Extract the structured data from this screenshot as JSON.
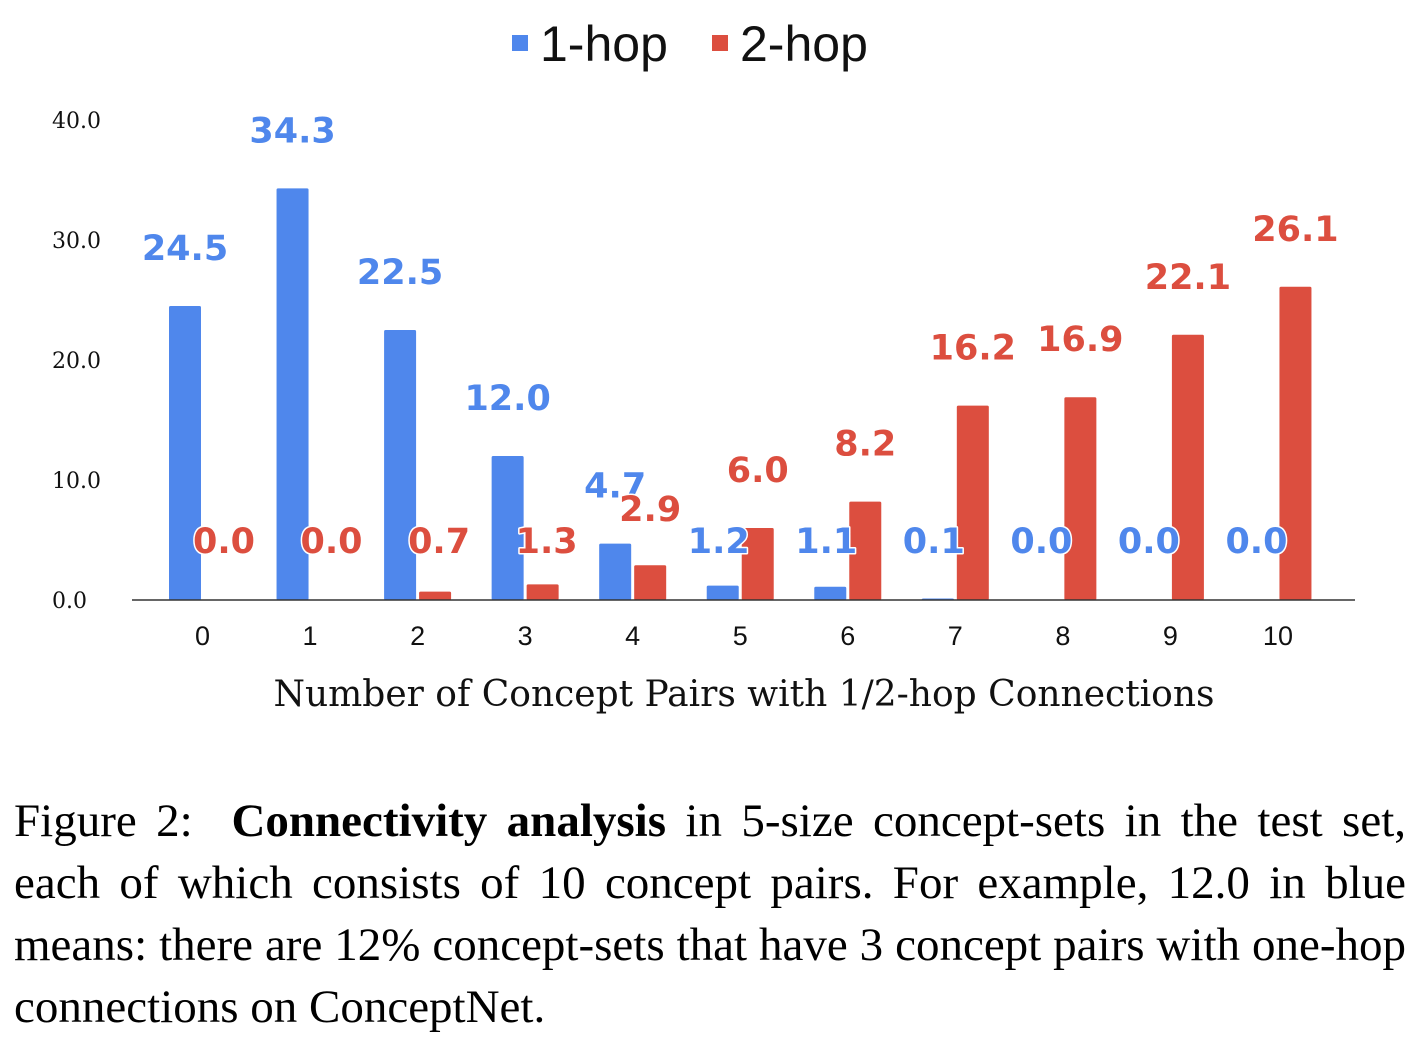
{
  "chart_data": {
    "type": "bar",
    "categories": [
      "0",
      "1",
      "2",
      "3",
      "4",
      "5",
      "6",
      "7",
      "8",
      "9",
      "10"
    ],
    "series": [
      {
        "name": "1-hop",
        "color": "#4f87ec",
        "values": [
          24.5,
          34.3,
          22.5,
          12.0,
          4.7,
          1.2,
          1.1,
          0.1,
          0.0,
          0.0,
          0.0
        ],
        "labels": [
          "24.5",
          "34.3",
          "22.5",
          "12.0",
          "4.7",
          "1.2",
          "1.1",
          "0.1",
          "0.0",
          "0.0",
          "0.0"
        ]
      },
      {
        "name": "2-hop",
        "color": "#dc4e3f",
        "values": [
          0.0,
          0.0,
          0.7,
          1.3,
          2.9,
          6.0,
          8.2,
          16.2,
          16.9,
          22.1,
          26.1
        ],
        "labels": [
          "0.0",
          "0.0",
          "0.7",
          "1.3",
          "2.9",
          "6.0",
          "8.2",
          "16.2",
          "16.9",
          "22.1",
          "26.1"
        ]
      }
    ],
    "xlabel": "Number of Concept Pairs with 1/2-hop Connections",
    "ylabel": "",
    "yticks": [
      "0.0",
      "10.0",
      "20.0",
      "30.0",
      "40.0"
    ],
    "ylim": [
      0,
      40
    ],
    "grid": false,
    "legend": "top-center"
  },
  "caption": {
    "prefix": "Figure 2:",
    "bold": "Connectivity analysis",
    "text": "in 5-size concept-sets in the test set, each of which consists of 10 concept pairs. For example, 12.0 in blue means: there are 12% concept-sets that have 3 concept pairs with one-hop connections on ConceptNet."
  }
}
